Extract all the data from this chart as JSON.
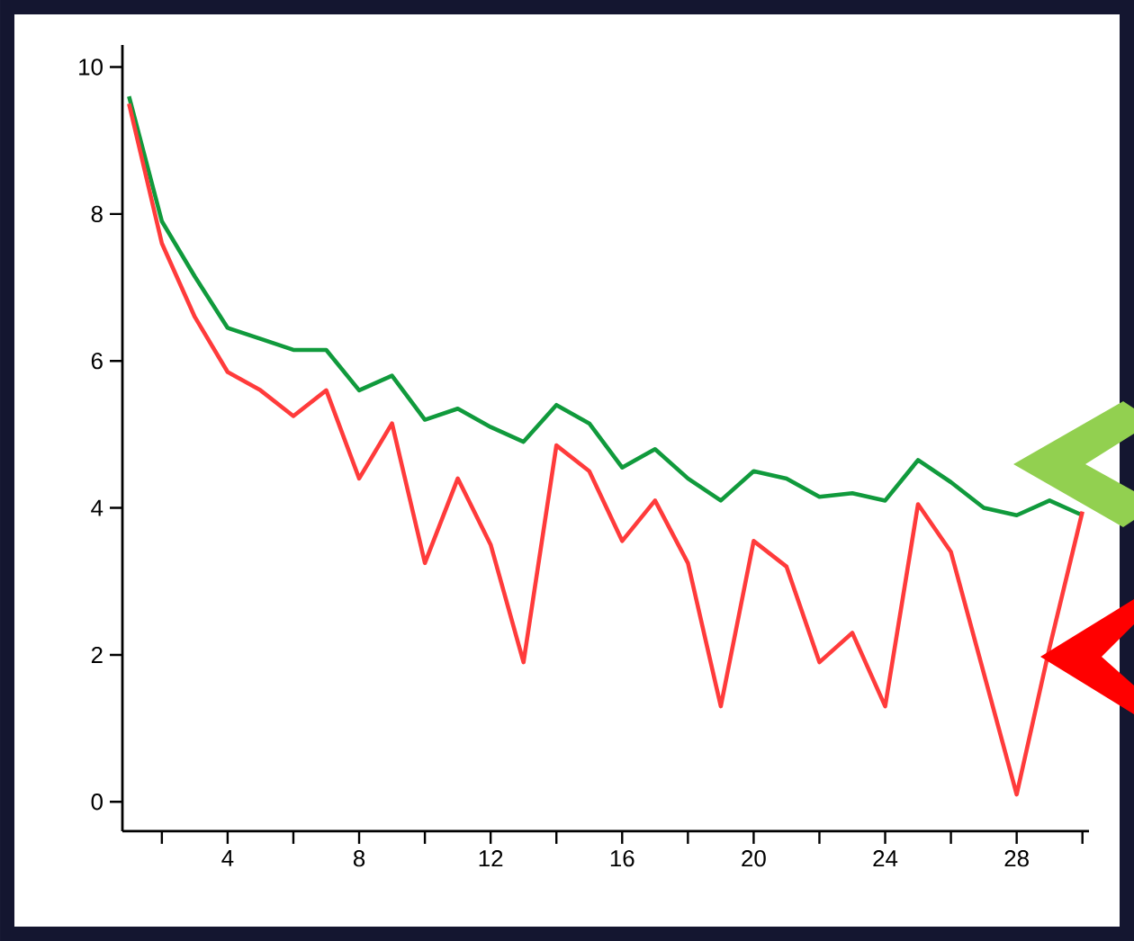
{
  "chart_data": {
    "type": "line",
    "x": [
      1,
      2,
      3,
      4,
      5,
      6,
      7,
      8,
      9,
      10,
      11,
      12,
      13,
      14,
      15,
      16,
      17,
      18,
      19,
      20,
      21,
      22,
      23,
      24,
      25,
      26,
      27,
      28,
      29,
      30
    ],
    "series": [
      {
        "color": "#109a3c",
        "values": [
          9.6,
          7.9,
          7.15,
          6.45,
          6.3,
          6.15,
          6.15,
          5.6,
          5.8,
          5.2,
          5.35,
          5.1,
          4.9,
          5.4,
          5.15,
          4.55,
          4.8,
          4.4,
          4.1,
          4.5,
          4.4,
          4.15,
          4.2,
          4.1,
          4.65,
          4.35,
          4.0,
          3.9,
          4.1,
          3.9
        ]
      },
      {
        "color": "#ff3b3b",
        "values": [
          9.5,
          7.6,
          6.6,
          5.85,
          5.6,
          5.25,
          5.6,
          4.4,
          5.15,
          3.25,
          4.4,
          3.5,
          1.9,
          4.85,
          4.5,
          3.55,
          4.1,
          3.25,
          1.3,
          3.55,
          3.2,
          1.9,
          2.3,
          1.3,
          4.05,
          3.4,
          1.75,
          0.1,
          2.1,
          3.95
        ]
      }
    ],
    "xlim": [
      0.8,
      30.2
    ],
    "ylim": [
      -0.4,
      10.3
    ],
    "xticks": [
      {
        "value": 2,
        "label": null
      },
      4,
      {
        "value": 6,
        "label": null
      },
      8,
      {
        "value": 10,
        "label": null
      },
      12,
      {
        "value": 14,
        "label": null
      },
      16,
      {
        "value": 18,
        "label": null
      },
      20,
      {
        "value": 22,
        "label": null
      },
      24,
      {
        "value": 26,
        "label": null
      },
      28,
      {
        "value": 30,
        "label": null
      }
    ],
    "yticks": [
      0,
      2,
      4,
      6,
      8,
      10
    ]
  }
}
